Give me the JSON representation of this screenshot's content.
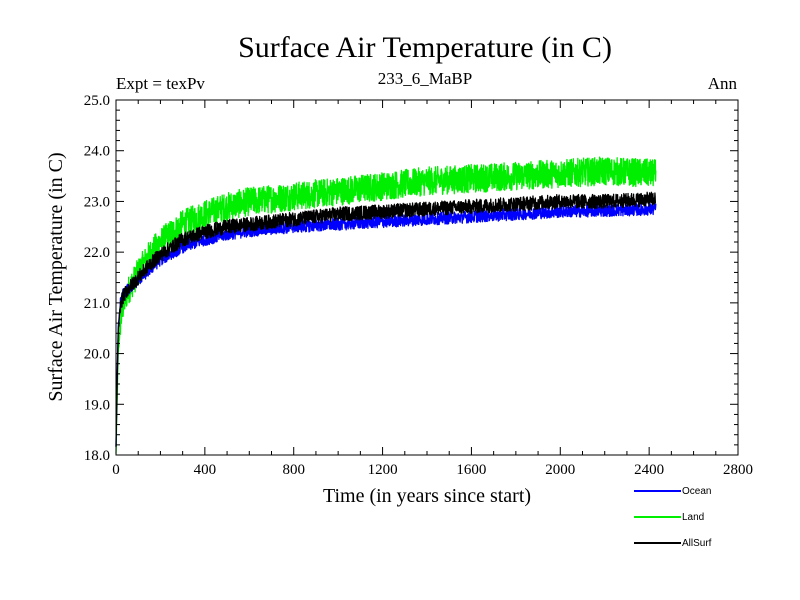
{
  "chart_data": {
    "type": "line",
    "title": "Surface Air Temperature (in C)",
    "subtitle_left": "Expt = texPv",
    "subtitle_center": "233_6_MaBP",
    "subtitle_right": "Ann",
    "xlabel": "Time (in years since start)",
    "ylabel": "Surface Air Temperature (in C)",
    "xlim": [
      0,
      2800
    ],
    "ylim": [
      18.0,
      25.0
    ],
    "x_ticks": [
      0,
      400,
      800,
      1200,
      1600,
      2000,
      2400,
      2800
    ],
    "x_tick_labels": [
      "0",
      "400",
      "800",
      "1200",
      "1600",
      "2000",
      "2400",
      "2800"
    ],
    "y_ticks": [
      18.0,
      19.0,
      20.0,
      21.0,
      22.0,
      23.0,
      24.0,
      25.0
    ],
    "y_tick_labels": [
      "18.0",
      "19.0",
      "20.0",
      "21.0",
      "22.0",
      "23.0",
      "24.0",
      "25.0"
    ],
    "legend_position": "bottom-right outside",
    "series": [
      {
        "name": "Ocean",
        "color": "#0000ff",
        "noise": 0.12,
        "x": [
          0,
          5,
          10,
          20,
          30,
          50,
          100,
          150,
          200,
          300,
          400,
          500,
          600,
          800,
          1000,
          1200,
          1400,
          1600,
          1800,
          2000,
          2200,
          2430
        ],
        "values": [
          18.2,
          19.5,
          20.5,
          21.0,
          21.15,
          21.25,
          21.45,
          21.65,
          21.85,
          22.1,
          22.25,
          22.35,
          22.42,
          22.5,
          22.55,
          22.6,
          22.65,
          22.7,
          22.75,
          22.8,
          22.82,
          22.85
        ]
      },
      {
        "name": "Land",
        "color": "#00ee00",
        "noise": 0.28,
        "x": [
          0,
          5,
          10,
          20,
          30,
          50,
          100,
          150,
          200,
          300,
          400,
          500,
          600,
          800,
          1000,
          1200,
          1400,
          1600,
          1800,
          2000,
          2200,
          2430
        ],
        "values": [
          18.0,
          19.0,
          20.0,
          20.6,
          20.9,
          21.2,
          21.6,
          21.95,
          22.2,
          22.55,
          22.75,
          22.9,
          23.0,
          23.1,
          23.2,
          23.3,
          23.4,
          23.45,
          23.5,
          23.55,
          23.6,
          23.55
        ]
      },
      {
        "name": "AllSurf",
        "color": "#000000",
        "noise": 0.14,
        "x": [
          0,
          5,
          10,
          20,
          30,
          50,
          100,
          150,
          200,
          300,
          400,
          500,
          600,
          800,
          1000,
          1200,
          1400,
          1600,
          1800,
          2000,
          2200,
          2430
        ],
        "values": [
          18.2,
          19.4,
          20.4,
          20.95,
          21.1,
          21.25,
          21.5,
          21.75,
          21.95,
          22.25,
          22.4,
          22.5,
          22.55,
          22.65,
          22.75,
          22.8,
          22.85,
          22.9,
          22.95,
          23.0,
          23.0,
          23.05
        ]
      }
    ]
  }
}
